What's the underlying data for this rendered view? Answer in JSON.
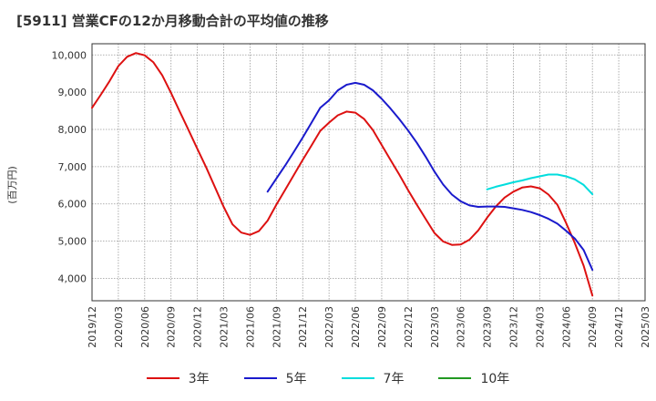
{
  "chart_data": {
    "type": "line",
    "title": "[5911]  営業CFの12か月移動合計の平均値の推移",
    "ylabel": "(百万円)",
    "xlabel": "",
    "ylim": [
      3400,
      10300
    ],
    "yticks": [
      4000,
      5000,
      6000,
      7000,
      8000,
      9000,
      10000
    ],
    "ytick_labels": [
      "4,000",
      "5,000",
      "6,000",
      "7,000",
      "8,000",
      "9,000",
      "10,000"
    ],
    "xticks": [
      "2019/12",
      "2020/03",
      "2020/06",
      "2020/09",
      "2020/12",
      "2021/03",
      "2021/06",
      "2021/09",
      "2021/12",
      "2022/03",
      "2022/06",
      "2022/09",
      "2022/12",
      "2023/03",
      "2023/06",
      "2023/09",
      "2023/12",
      "2024/03",
      "2024/06",
      "2024/09",
      "2024/12",
      "2025/03"
    ],
    "x_start": "2019/12",
    "grid": true,
    "legend_position": "bottom",
    "series": [
      {
        "name": "3年",
        "color": "#dd1111",
        "x": [
          "2019/12",
          "2020/01",
          "2020/02",
          "2020/03",
          "2020/04",
          "2020/05",
          "2020/06",
          "2020/07",
          "2020/08",
          "2020/09",
          "2020/10",
          "2020/11",
          "2020/12",
          "2021/01",
          "2021/02",
          "2021/03",
          "2021/04",
          "2021/05",
          "2021/06",
          "2021/07",
          "2021/08",
          "2021/09",
          "2021/10",
          "2021/11",
          "2021/12",
          "2022/01",
          "2022/02",
          "2022/03",
          "2022/04",
          "2022/05",
          "2022/06",
          "2022/07",
          "2022/08",
          "2022/09",
          "2022/10",
          "2022/11",
          "2022/12",
          "2023/01",
          "2023/02",
          "2023/03",
          "2023/04",
          "2023/05",
          "2023/06",
          "2023/07",
          "2023/08",
          "2023/09",
          "2023/10",
          "2023/11",
          "2023/12",
          "2024/01",
          "2024/02",
          "2024/03",
          "2024/04",
          "2024/05",
          "2024/06",
          "2024/07",
          "2024/08",
          "2024/09"
        ],
        "values": [
          8580,
          8930,
          9300,
          9700,
          9950,
          10050,
          9990,
          9800,
          9450,
          8980,
          8480,
          7980,
          7480,
          6980,
          6450,
          5920,
          5450,
          5230,
          5170,
          5270,
          5550,
          5980,
          6380,
          6780,
          7180,
          7570,
          7960,
          8180,
          8380,
          8480,
          8450,
          8280,
          7980,
          7580,
          7180,
          6790,
          6370,
          5980,
          5600,
          5220,
          4990,
          4900,
          4910,
          5040,
          5290,
          5630,
          5930,
          6170,
          6330,
          6440,
          6470,
          6420,
          6250,
          5980,
          5490,
          4950,
          4340,
          3540
        ]
      },
      {
        "name": "5年",
        "color": "#1a1acc",
        "x": [
          "2021/08",
          "2021/09",
          "2021/10",
          "2021/11",
          "2021/12",
          "2022/01",
          "2022/02",
          "2022/03",
          "2022/04",
          "2022/05",
          "2022/06",
          "2022/07",
          "2022/08",
          "2022/09",
          "2022/10",
          "2022/11",
          "2022/12",
          "2023/01",
          "2023/02",
          "2023/03",
          "2023/04",
          "2023/05",
          "2023/06",
          "2023/07",
          "2023/08",
          "2023/09",
          "2023/10",
          "2023/11",
          "2023/12",
          "2024/01",
          "2024/02",
          "2024/03",
          "2024/04",
          "2024/05",
          "2024/06",
          "2024/07",
          "2024/08",
          "2024/09"
        ],
        "values": [
          6330,
          6680,
          7030,
          7400,
          7780,
          8180,
          8580,
          8780,
          9050,
          9200,
          9250,
          9200,
          9050,
          8820,
          8560,
          8280,
          7970,
          7640,
          7270,
          6870,
          6520,
          6250,
          6070,
          5960,
          5920,
          5930,
          5930,
          5920,
          5880,
          5840,
          5780,
          5700,
          5600,
          5470,
          5280,
          5070,
          4760,
          4230
        ]
      },
      {
        "name": "7年",
        "color": "#00dddd",
        "x": [
          "2023/09",
          "2023/10",
          "2023/11",
          "2023/12",
          "2024/01",
          "2024/02",
          "2024/03",
          "2024/04",
          "2024/05",
          "2024/06",
          "2024/07",
          "2024/08",
          "2024/09"
        ],
        "values": [
          6390,
          6460,
          6520,
          6580,
          6630,
          6690,
          6740,
          6790,
          6790,
          6740,
          6660,
          6510,
          6260
        ]
      },
      {
        "name": "10年",
        "color": "#229922",
        "x": [],
        "values": []
      }
    ]
  }
}
